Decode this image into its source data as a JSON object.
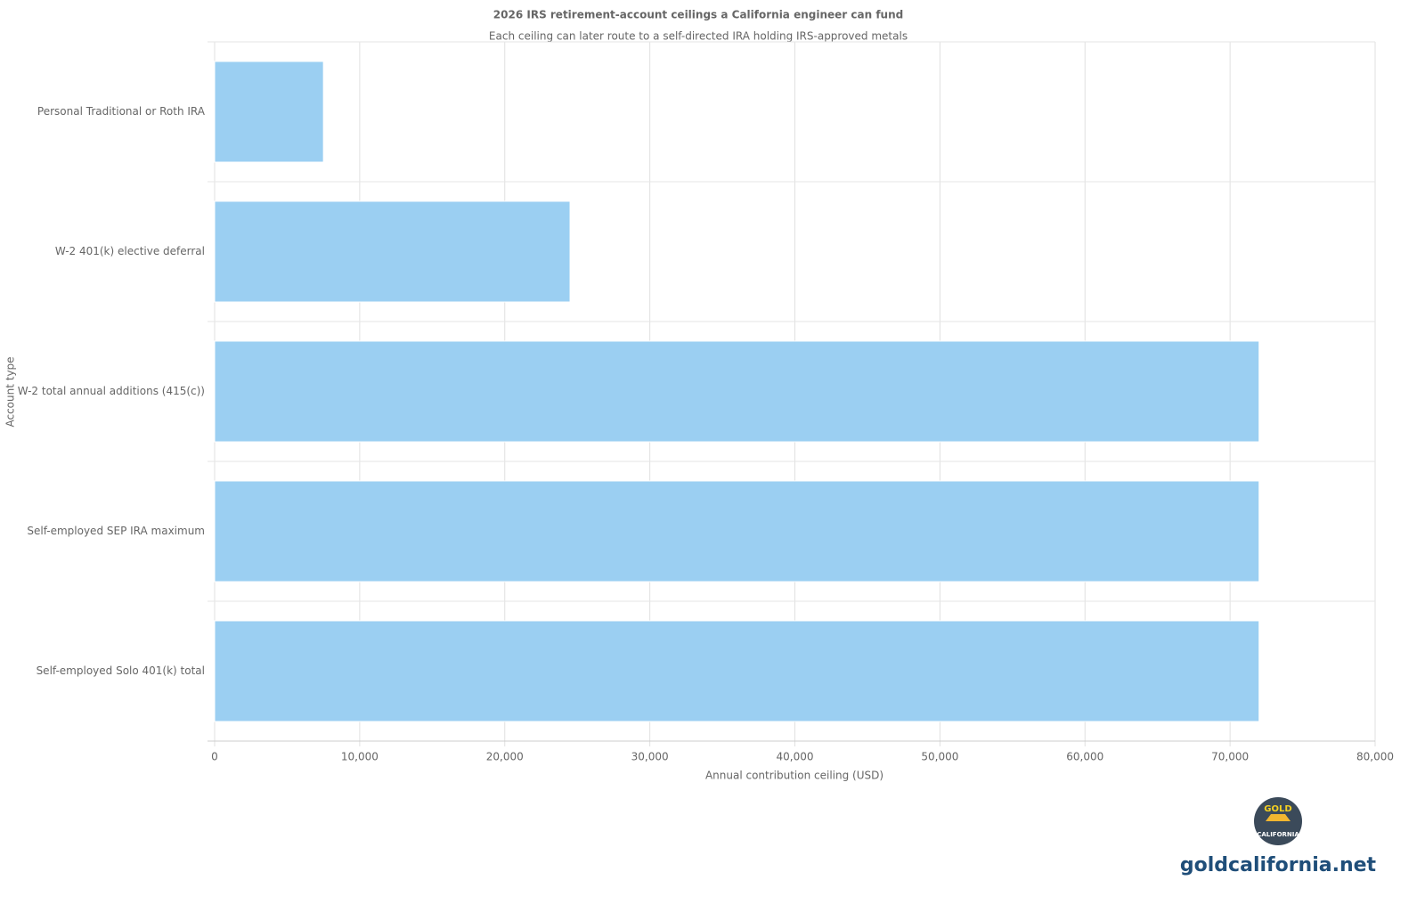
{
  "chart_data": {
    "type": "barh",
    "title": "2026 IRS retirement-account ceilings a California engineer can fund",
    "subtitle": "Each ceiling can later route to a self-directed IRA holding IRS-approved metals",
    "x_label": "Annual contribution ceiling (USD)",
    "y_label": "Account type",
    "categories": [
      "Personal Traditional or Roth IRA",
      "W-2 401(k) elective deferral",
      "W-2 total annual additions (415(c))",
      "Self-employed SEP IRA maximum",
      "Self-employed Solo 401(k) total"
    ],
    "values": [
      7500,
      24500,
      72000,
      72000,
      72000
    ],
    "color": "#9bcff2",
    "xlim": [
      0,
      80000
    ],
    "xticks": [
      0,
      {
        "value": 10000,
        "label": "10,000"
      },
      {
        "value": 20000,
        "label": "20,000"
      },
      {
        "value": 30000,
        "label": "30,000"
      },
      {
        "value": 40000,
        "label": "40,000"
      },
      {
        "value": 50000,
        "label": "50,000"
      },
      {
        "value": 60000,
        "label": "60,000"
      },
      {
        "value": 70000,
        "label": "70,000"
      },
      {
        "value": 80000,
        "label": "80,000"
      }
    ],
    "grid": true
  },
  "watermark": {
    "logo_top": "GOLD",
    "logo_bottom": "CALIFORNIA",
    "text": "goldcalifornia.net"
  }
}
